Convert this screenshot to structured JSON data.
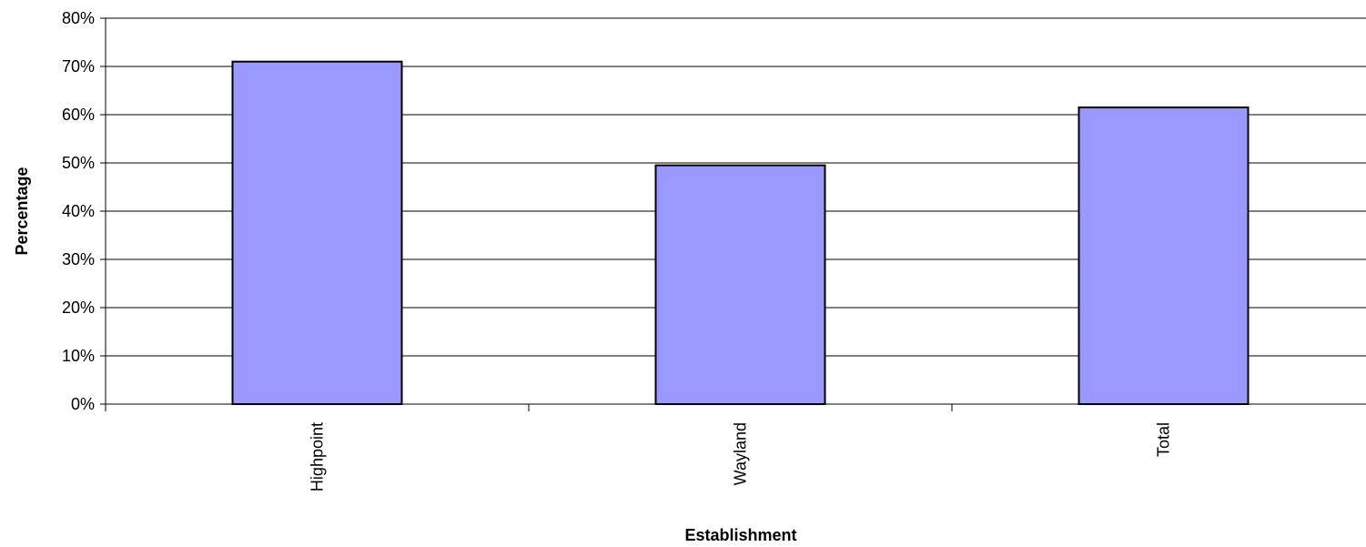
{
  "chart_data": {
    "type": "bar",
    "categories": [
      "Highpoint",
      "Wayland",
      "Total"
    ],
    "values": [
      71,
      49.5,
      61.5
    ],
    "xlabel": "Establishment",
    "ylabel": "Percentage",
    "ylim": [
      0,
      80
    ],
    "yticks": [
      "0%",
      "10%",
      "20%",
      "30%",
      "40%",
      "50%",
      "60%",
      "70%",
      "80%"
    ],
    "grid": true,
    "legend": "none",
    "bar_color": "#9999FF"
  }
}
